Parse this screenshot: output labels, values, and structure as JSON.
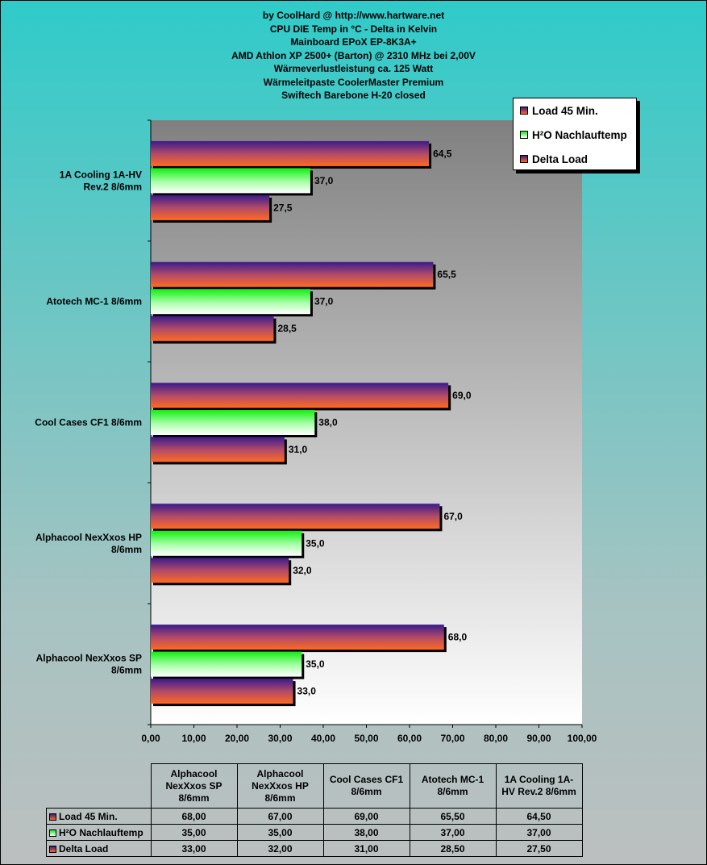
{
  "chart_data": {
    "type": "bar",
    "orientation": "horizontal",
    "title_lines": [
      "by CoolHard @ http://www.hartware.net",
      "CPU DIE Temp in °C - Delta in Kelvin",
      "Mainboard EPoX EP-8K3A+",
      "AMD Athlon XP 2500+ (Barton) @ 2310 MHz  bei 2,00V",
      "Wärmeverlustleistung ca. 125 Watt",
      "Wärmeleitpaste CoolerMaster Premium",
      "Swiftech Barebone H-20  closed"
    ],
    "categories": [
      "1A Cooling 1A-HV Rev.2 8/6mm",
      "Atotech MC-1 8/6mm",
      "Cool Cases CF1 8/6mm",
      "Alphacool NexXxos HP 8/6mm",
      "Alphacool NexXxos SP 8/6mm"
    ],
    "category_labels": [
      [
        "1A Cooling 1A-HV",
        "Rev.2 8/6mm"
      ],
      [
        "Atotech MC-1 8/6mm"
      ],
      [
        "Cool Cases CF1 8/6mm"
      ],
      [
        "Alphacool NexXxos HP",
        "8/6mm"
      ],
      [
        "Alphacool NexXxos SP",
        "8/6mm"
      ]
    ],
    "series": [
      {
        "name": "Load 45 Min.",
        "values": [
          64.5,
          65.5,
          69.0,
          67.0,
          68.0
        ],
        "labels": [
          "64,5",
          "65,5",
          "69,0",
          "67,0",
          "68,0"
        ],
        "color": "#e84c5a"
      },
      {
        "name": "H²O Nachlauftemp",
        "values": [
          37.0,
          37.0,
          38.0,
          35.0,
          35.0
        ],
        "labels": [
          "37,0",
          "37,0",
          "38,0",
          "35,0",
          "35,0"
        ],
        "color": "#33ee33"
      },
      {
        "name": "Delta Load",
        "values": [
          27.5,
          28.5,
          31.0,
          32.0,
          33.0
        ],
        "labels": [
          "27,5",
          "28,5",
          "31,0",
          "32,0",
          "33,0"
        ],
        "color": "#e85050"
      }
    ],
    "xlim": [
      0,
      100
    ],
    "xticks": [
      "0,00",
      "10,00",
      "20,00",
      "30,00",
      "40,00",
      "50,00",
      "60,00",
      "70,00",
      "80,00",
      "90,00",
      "100,00"
    ],
    "legend_position": "top-right",
    "grid": false
  },
  "legend": {
    "items": [
      {
        "label": "Load 45 Min.",
        "color": "#c0304a"
      },
      {
        "label": "H²O Nachlauftemp",
        "color": "#66ff66"
      },
      {
        "label": "Delta Load",
        "color": "#c0304a"
      }
    ]
  },
  "table": {
    "headers": [
      [
        "Alphacool",
        "NexXxos SP",
        "8/6mm"
      ],
      [
        "Alphacool",
        "NexXxos HP",
        "8/6mm"
      ],
      [
        "Cool Cases CF1",
        "8/6mm"
      ],
      [
        "Atotech MC-1",
        "8/6mm"
      ],
      [
        "1A Cooling 1A-",
        "HV Rev.2 8/6mm"
      ]
    ],
    "rows": [
      {
        "label": "Load 45 Min.",
        "color": "#c0304a",
        "values": [
          "68,00",
          "67,00",
          "69,00",
          "65,50",
          "64,50"
        ]
      },
      {
        "label": "H²O Nachlauftemp",
        "color": "#66ff66",
        "values": [
          "35,00",
          "35,00",
          "38,00",
          "37,00",
          "37,00"
        ]
      },
      {
        "label": "Delta Load",
        "color": "#c0304a",
        "values": [
          "33,00",
          "32,00",
          "31,00",
          "28,50",
          "27,50"
        ]
      }
    ]
  }
}
